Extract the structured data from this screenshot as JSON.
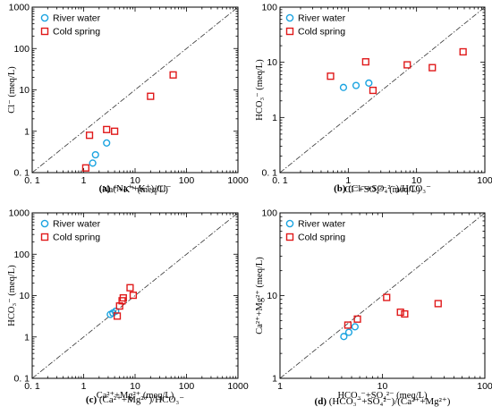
{
  "chart_data": [
    {
      "id": "a",
      "type": "scatter",
      "scale": "log",
      "xlim": [
        0.1,
        1000
      ],
      "ylim": [
        0.1,
        1000
      ],
      "x_ticks": [
        "0. 1",
        "1",
        "10",
        "100",
        "1000"
      ],
      "y_ticks": [
        "0. 1",
        "1",
        "10",
        "100",
        "1000"
      ],
      "xlabel": "Na⁺+K⁺ (meq/L)",
      "ylabel": "Cl⁻ (meq/L)",
      "caption_letter": "(a)",
      "caption_text": " (Na⁺+K⁺)/Cl⁻",
      "ref_line": "1:1",
      "legend": [
        {
          "name": "River water",
          "marker": "circle",
          "color": "#1aa3e0"
        },
        {
          "name": "Cold spring",
          "marker": "square",
          "color": "#e0191a"
        }
      ],
      "series": [
        {
          "name": "River water",
          "points": [
            [
              1.5,
              0.17
            ],
            [
              1.7,
              0.27
            ],
            [
              2.8,
              0.52
            ]
          ]
        },
        {
          "name": "Cold spring",
          "points": [
            [
              1.1,
              0.13
            ],
            [
              1.3,
              0.8
            ],
            [
              2.8,
              1.1
            ],
            [
              4.0,
              1.0
            ],
            [
              20,
              7.0
            ],
            [
              55,
              23
            ]
          ]
        }
      ]
    },
    {
      "id": "b",
      "type": "scatter",
      "scale": "log",
      "xlim": [
        0.1,
        100
      ],
      "ylim": [
        0.1,
        100
      ],
      "x_ticks": [
        "0. 1",
        "1",
        "10",
        "100"
      ],
      "y_ticks": [
        "0. 1",
        "1",
        "10",
        "100"
      ],
      "xlabel": "Cl⁻+SO₄²⁻ (meq/L)",
      "ylabel": "HCO₃⁻ (meq/L)",
      "caption_letter": "(b)",
      "caption_text": " (Cl⁻+SO₄²⁻)/HCO₃⁻",
      "ref_line": "1:1",
      "legend": [
        {
          "name": "River water",
          "marker": "circle",
          "color": "#1aa3e0"
        },
        {
          "name": "Cold spring",
          "marker": "square",
          "color": "#e0191a"
        }
      ],
      "series": [
        {
          "name": "River water",
          "points": [
            [
              0.85,
              3.5
            ],
            [
              1.3,
              3.8
            ],
            [
              2.0,
              4.2
            ]
          ]
        },
        {
          "name": "Cold spring",
          "points": [
            [
              0.55,
              5.6
            ],
            [
              1.8,
              10.2
            ],
            [
              2.3,
              3.1
            ],
            [
              7.3,
              9.0
            ],
            [
              17,
              8.0
            ],
            [
              48,
              15.5
            ]
          ]
        }
      ]
    },
    {
      "id": "c",
      "type": "scatter",
      "scale": "log",
      "xlim": [
        0.1,
        1000
      ],
      "ylim": [
        0.1,
        1000
      ],
      "x_ticks": [
        "0. 1",
        "1",
        "10",
        "100",
        "1000"
      ],
      "y_ticks": [
        "0. 1",
        "1",
        "10",
        "100",
        "1000"
      ],
      "xlabel": "Ca²⁺+Mg²⁺ (meq/L)",
      "ylabel": "HCO₃⁻ (meq/L)",
      "caption_letter": "(c)",
      "caption_text": " (Ca²⁺+Mg²⁺)/HCO₃⁻",
      "ref_line": "1:1",
      "legend": [
        {
          "name": "River water",
          "marker": "circle",
          "color": "#1aa3e0"
        },
        {
          "name": "Cold spring",
          "marker": "square",
          "color": "#e0191a"
        }
      ],
      "series": [
        {
          "name": "River water",
          "points": [
            [
              3.3,
              3.5
            ],
            [
              3.7,
              3.8
            ],
            [
              4.2,
              4.2
            ]
          ]
        },
        {
          "name": "Cold spring",
          "points": [
            [
              4.5,
              3.2
            ],
            [
              5.0,
              5.6
            ],
            [
              5.6,
              7.5
            ],
            [
              5.9,
              8.8
            ],
            [
              8.0,
              15.5
            ],
            [
              9.2,
              10.2
            ]
          ]
        }
      ]
    },
    {
      "id": "d",
      "type": "scatter",
      "scale": "log",
      "xlim": [
        1,
        100
      ],
      "ylim": [
        1,
        100
      ],
      "x_ticks": [
        "1",
        "10",
        "100"
      ],
      "y_ticks": [
        "1",
        "10",
        "100"
      ],
      "xlabel": "HCO₃⁻+SO₄²⁻ (meq/L)",
      "ylabel": "Ca²⁺+Mg²⁺ (meq/L)",
      "caption_letter": "(d)",
      "caption_text": " (HCO₃⁻+SO₄²⁻)/(Ca²⁺+Mg²⁺)",
      "ref_line": "1:1",
      "legend": [
        {
          "name": "River water",
          "marker": "circle",
          "color": "#1aa3e0"
        },
        {
          "name": "Cold spring",
          "marker": "square",
          "color": "#e0191a"
        }
      ],
      "series": [
        {
          "name": "River water",
          "points": [
            [
              4.2,
              3.2
            ],
            [
              4.7,
              3.6
            ],
            [
              5.4,
              4.2
            ]
          ]
        },
        {
          "name": "Cold spring",
          "points": [
            [
              4.6,
              4.4
            ],
            [
              5.7,
              5.2
            ],
            [
              11,
              9.5
            ],
            [
              15,
              6.3
            ],
            [
              16.5,
              6.0
            ],
            [
              35,
              8.0
            ]
          ]
        }
      ]
    }
  ]
}
